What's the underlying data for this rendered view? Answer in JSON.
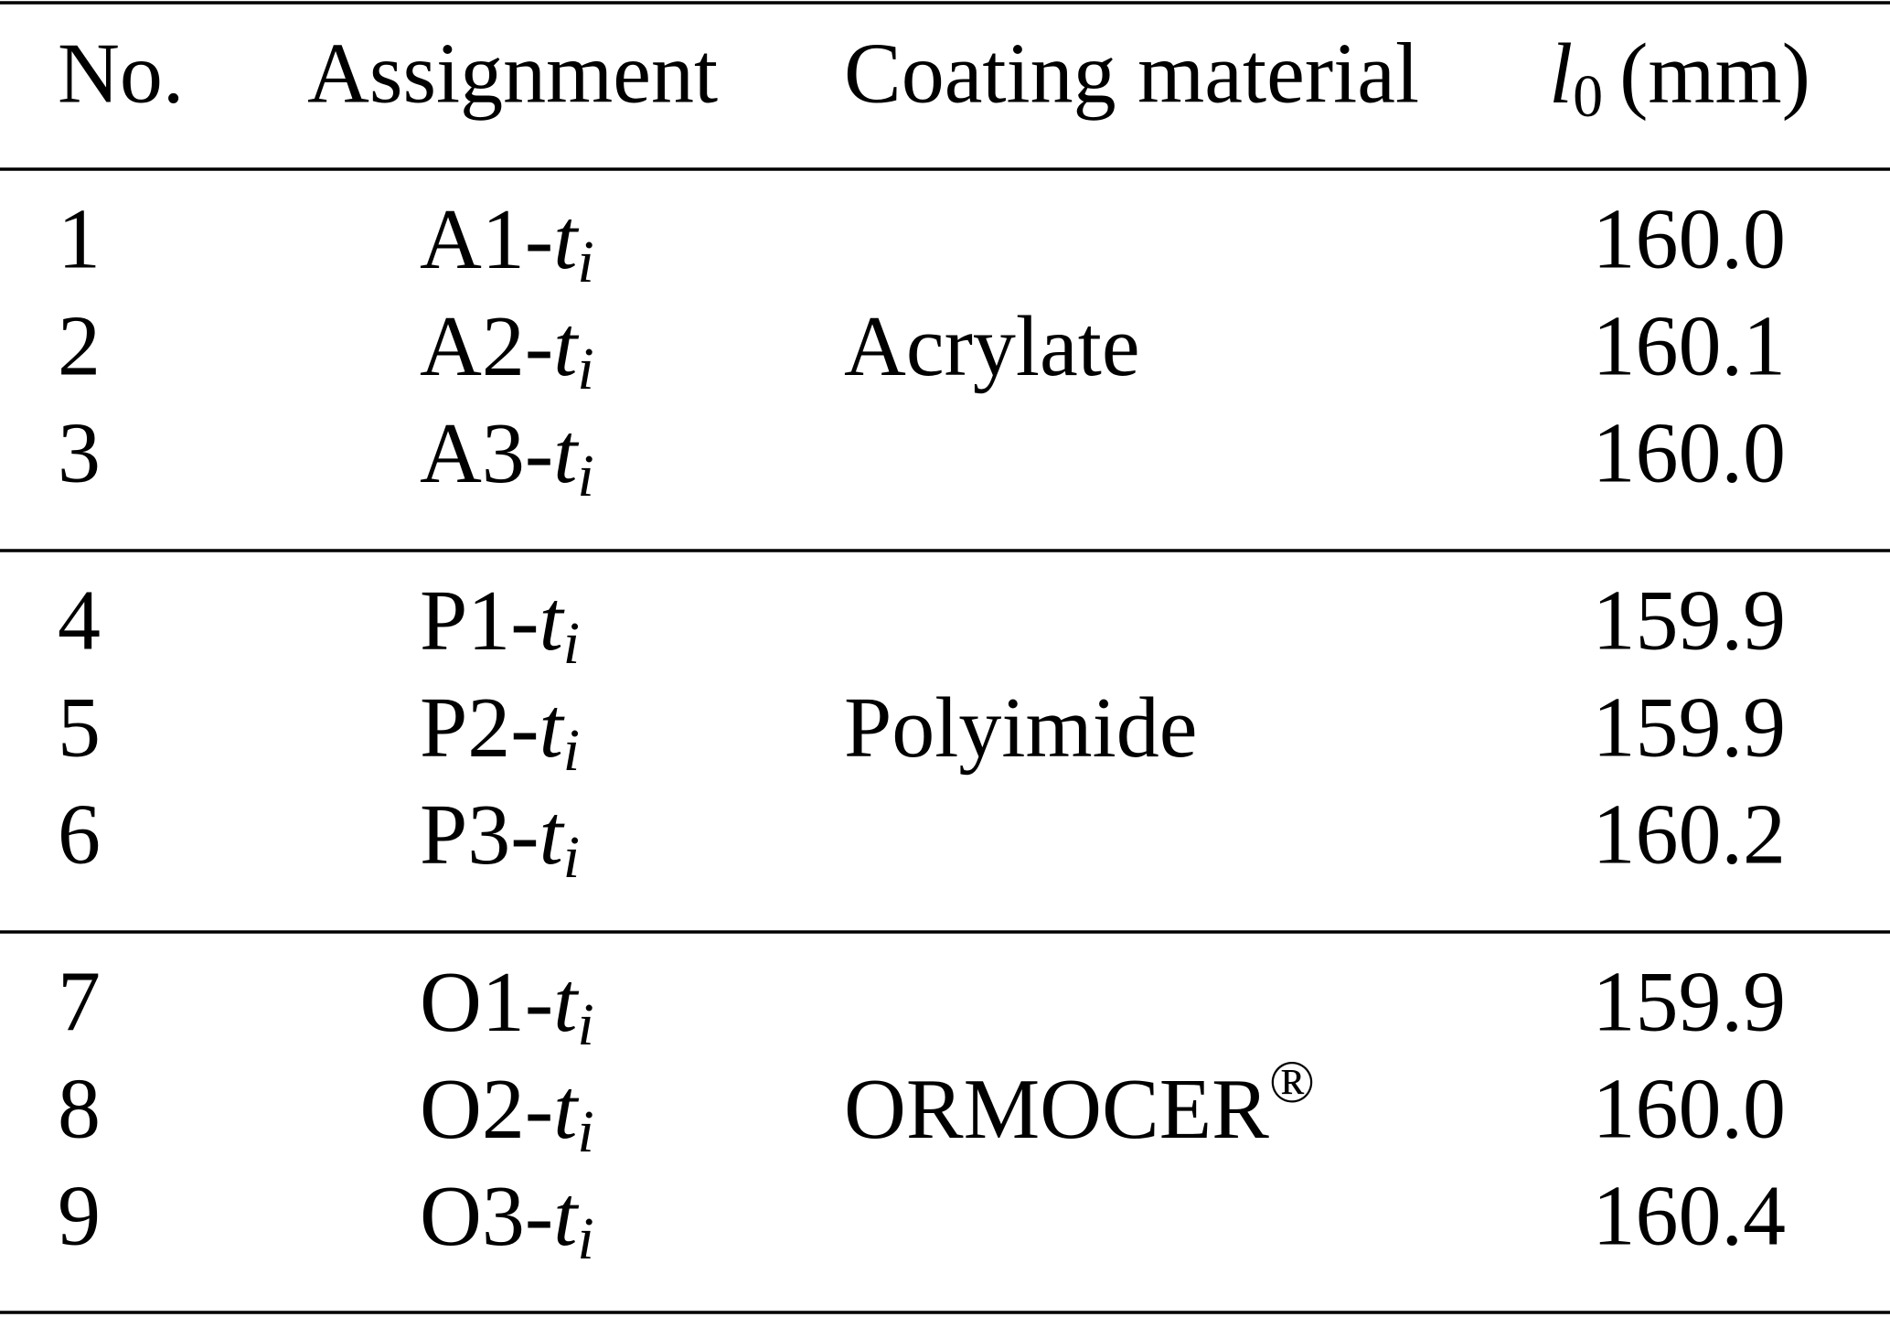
{
  "table": {
    "header": {
      "no": "No.",
      "assignment": "Assignment",
      "material": "Coating material",
      "length": {
        "symbol": "l",
        "sub": "0",
        "unit": "(mm)"
      }
    },
    "groups": [
      {
        "material": {
          "text": "Acrylate"
        },
        "rows": [
          {
            "no": "1",
            "assignment": {
              "prefix": "A1-",
              "var": "t",
              "sub": "i"
            },
            "length": "160.0"
          },
          {
            "no": "2",
            "assignment": {
              "prefix": "A2-",
              "var": "t",
              "sub": "i"
            },
            "length": "160.1"
          },
          {
            "no": "3",
            "assignment": {
              "prefix": "A3-",
              "var": "t",
              "sub": "i"
            },
            "length": "160.0"
          }
        ]
      },
      {
        "material": {
          "text": "Polyimide"
        },
        "rows": [
          {
            "no": "4",
            "assignment": {
              "prefix": "P1-",
              "var": "t",
              "sub": "i"
            },
            "length": "159.9"
          },
          {
            "no": "5",
            "assignment": {
              "prefix": "P2-",
              "var": "t",
              "sub": "i"
            },
            "length": "159.9"
          },
          {
            "no": "6",
            "assignment": {
              "prefix": "P3-",
              "var": "t",
              "sub": "i"
            },
            "length": "160.2"
          }
        ]
      },
      {
        "material": {
          "text": "ORMOCER",
          "sup": "®"
        },
        "rows": [
          {
            "no": "7",
            "assignment": {
              "prefix": "O1-",
              "var": "t",
              "sub": "i"
            },
            "length": "159.9"
          },
          {
            "no": "8",
            "assignment": {
              "prefix": "O2-",
              "var": "t",
              "sub": "i"
            },
            "length": "160.0"
          },
          {
            "no": "9",
            "assignment": {
              "prefix": "O3-",
              "var": "t",
              "sub": "i"
            },
            "length": "160.4"
          }
        ]
      }
    ]
  }
}
